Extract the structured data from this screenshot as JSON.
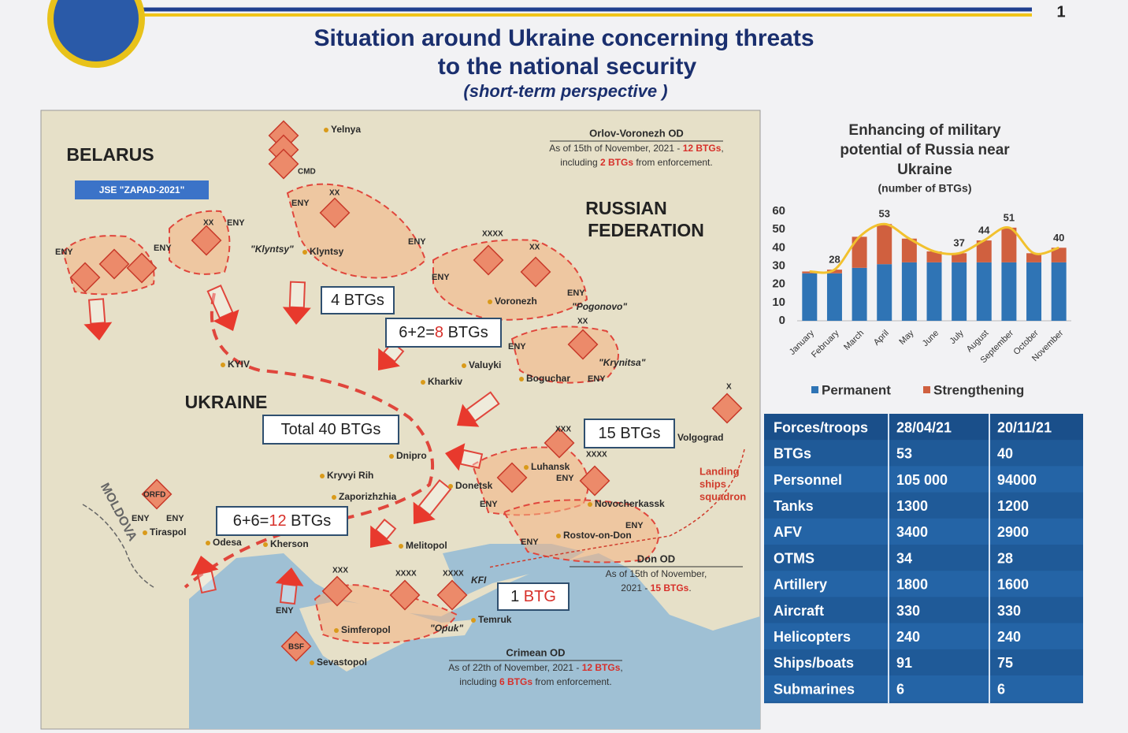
{
  "header": {
    "title": [
      "Situation around Ukraine concerning threats",
      "to the national security"
    ],
    "subtitle": "(short-term perspective )",
    "page_number": "1"
  },
  "map": {
    "countries": [
      "BELARUS",
      "RUSSIAN",
      "FEDERATION",
      "UKRAINE",
      "MOLDOVA"
    ],
    "exercise": "JSE \"ZAPAD-2021\"",
    "cities": [
      "Yelnya",
      "Klyntsy",
      "KYIV",
      "Valuyki",
      "Kharkiv",
      "Boguchar",
      "Voronezh",
      "Dnipro",
      "Kryvyi Rih",
      "Zaporizhzhia",
      "Donetsk",
      "Luhansk",
      "Novocherkassk",
      "Rostov-on-Don",
      "Melitopol",
      "Kherson",
      "Odesa",
      "Tiraspol",
      "Simferopol",
      "Sevastopol",
      "Temruk",
      "Volgograd"
    ],
    "sites": [
      "\"Klyntsy\"",
      "\"Pogonovo\"",
      "\"Krynitsa\"",
      "\"Opuk\"",
      "KFI"
    ],
    "enemy_labels": [
      "ENY",
      "ENY",
      "ENY",
      "ENY",
      "ENY",
      "ENY",
      "ENY",
      "ENY",
      "ENY",
      "ENY",
      "ENY",
      "ENY",
      "ENY",
      "ENY",
      "ENY",
      "ENY"
    ],
    "unit_labels": [
      "CMD",
      "XX",
      "XX",
      "XXXX",
      "XX",
      "XX",
      "XXXX",
      "XXX",
      "XXX",
      "XXXX",
      "XXXX",
      "X",
      "ORFD",
      "BSF"
    ],
    "landing": [
      "Landing",
      "ships",
      "squadron"
    ],
    "btg_boxes": [
      [
        "4 BTGs"
      ],
      [
        "6+2=",
        "8",
        " BTGs"
      ],
      [
        "Total 40 BTGs"
      ],
      [
        "6+6=",
        "12",
        " BTGs"
      ],
      [
        "15 BTGs"
      ],
      [
        "1",
        " BTG"
      ]
    ],
    "notes": [
      {
        "title": "Orlov-Voronezh OD",
        "lines": [
          [
            "As of 15th of November, 2021 - ",
            "12 BTGs",
            ","
          ],
          [
            "including ",
            "2 BTGs",
            " from enforcement."
          ]
        ]
      },
      {
        "title": "Don OD",
        "lines": [
          [
            "As of 15th of November,"
          ],
          [
            "2021 - ",
            "15 BTGs",
            "."
          ]
        ]
      },
      {
        "title": "Crimean OD",
        "lines": [
          [
            "As of 22th of November, 2021 - ",
            "12 BTGs",
            ","
          ],
          [
            "including ",
            "6 BTGs",
            " from enforcement."
          ]
        ]
      }
    ]
  },
  "chart_data": {
    "type": "bar",
    "stacked": true,
    "title": [
      "Enhancing of military",
      "potential of Russia near",
      "Ukraine"
    ],
    "subtitle": "(number of BTGs)",
    "categories": [
      "January",
      "February",
      "March",
      "April",
      "May",
      "June",
      "July",
      "August",
      "September",
      "October",
      "November"
    ],
    "series": [
      {
        "name": "Permanent",
        "color": "#2f74b5",
        "values": [
          26,
          26,
          29,
          31,
          32,
          32,
          32,
          32,
          32,
          32,
          32
        ]
      },
      {
        "name": "Strengthening",
        "color": "#d0603f",
        "values": [
          1,
          2,
          17,
          22,
          13,
          6,
          5,
          12,
          19,
          5,
          8
        ]
      }
    ],
    "line": {
      "color": "#f2c12e",
      "values": [
        27,
        28,
        46,
        53,
        45,
        38,
        37,
        44,
        51,
        37,
        40
      ],
      "value_labels": [
        null,
        "28",
        null,
        "53",
        null,
        null,
        "37",
        "44",
        "51",
        null,
        "40"
      ]
    },
    "ylim": [
      0,
      60
    ],
    "yticks": [
      0,
      10,
      20,
      30,
      40,
      50,
      60
    ],
    "legend": "bottom"
  },
  "table": {
    "header": [
      "Forces/troops",
      "28/04/21",
      "20/11/21"
    ],
    "rows": [
      [
        "BTGs",
        "53",
        "40"
      ],
      [
        "Personnel",
        "105 000",
        "94000"
      ],
      [
        "Tanks",
        "1300",
        "1200"
      ],
      [
        "AFV",
        "3400",
        "2900"
      ],
      [
        "OTMS",
        "34",
        "28"
      ],
      [
        "Artillery",
        "1800",
        "1600"
      ],
      [
        "Aircraft",
        "330",
        "330"
      ],
      [
        "Helicopters",
        "240",
        "240"
      ],
      [
        "Ships/boats",
        "91",
        "75"
      ],
      [
        "Submarines",
        "6",
        "6"
      ]
    ]
  }
}
